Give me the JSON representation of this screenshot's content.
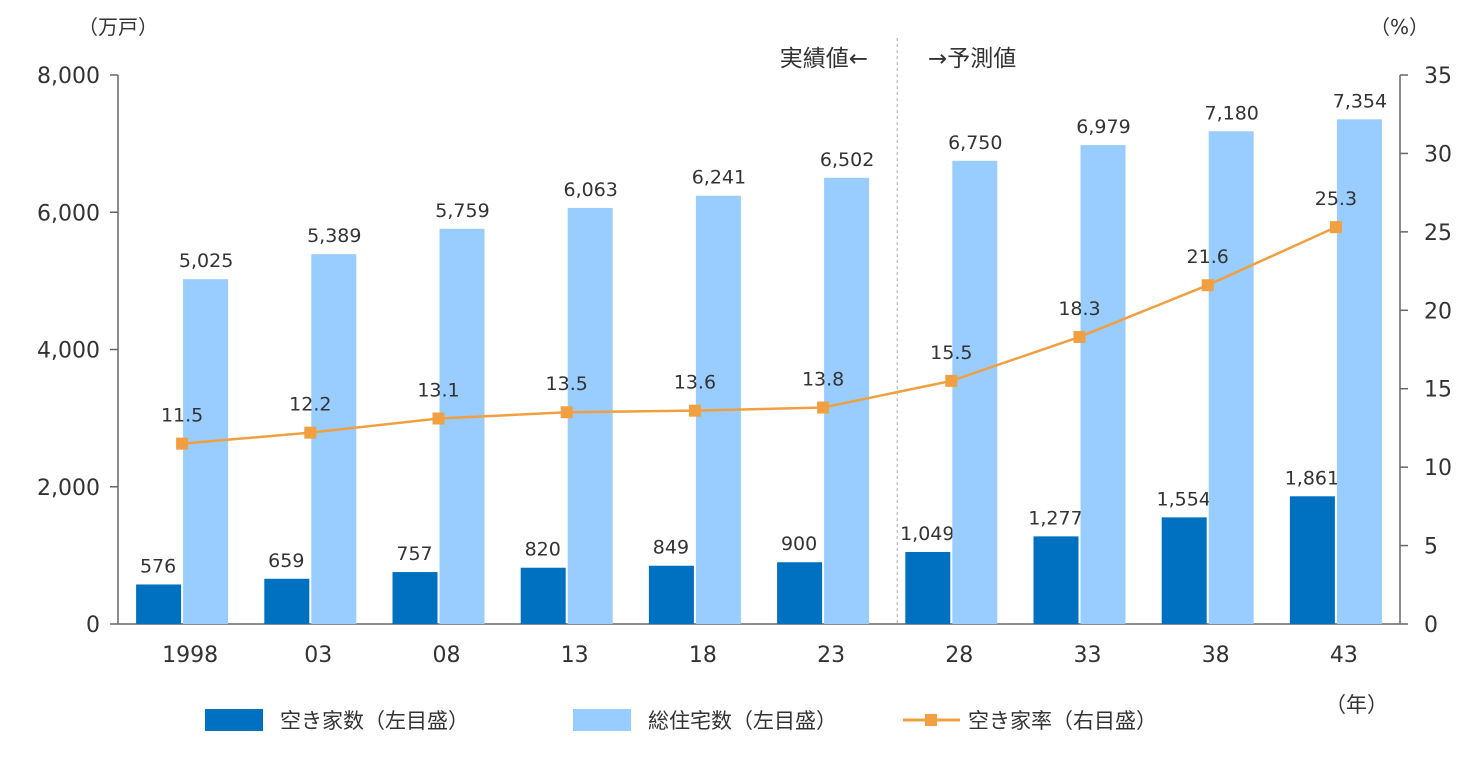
{
  "chart_data": {
    "type": "bar",
    "categories": [
      "1998",
      "03",
      "08",
      "13",
      "18",
      "23",
      "28",
      "33",
      "38",
      "43"
    ],
    "series": [
      {
        "name": "空き家数（左目盛）",
        "kind": "bar",
        "axis": "left",
        "color": "#0070c0",
        "values": [
          576,
          659,
          757,
          820,
          849,
          900,
          1049,
          1277,
          1554,
          1861
        ],
        "labels": [
          "576",
          "659",
          "757",
          "820",
          "849",
          "900",
          "1,049",
          "1,277",
          "1,554",
          "1,861"
        ]
      },
      {
        "name": "総住宅数（左目盛）",
        "kind": "bar",
        "axis": "left",
        "color": "#99ccff",
        "values": [
          5025,
          5389,
          5759,
          6063,
          6241,
          6502,
          6750,
          6979,
          7180,
          7354
        ],
        "labels": [
          "5,025",
          "5,389",
          "5,759",
          "6,063",
          "6,241",
          "6,502",
          "6,750",
          "6,979",
          "7,180",
          "7,354"
        ]
      },
      {
        "name": "空き家率（右目盛）",
        "kind": "line",
        "axis": "right",
        "color": "#f0a040",
        "values": [
          11.5,
          12.2,
          13.1,
          13.5,
          13.6,
          13.8,
          15.5,
          18.3,
          21.6,
          25.3
        ],
        "labels": [
          "11.5",
          "12.2",
          "13.1",
          "13.5",
          "13.6",
          "13.8",
          "15.5",
          "18.3",
          "21.6",
          "25.3"
        ]
      }
    ],
    "left_axis": {
      "unit": "（万戸）",
      "ylim": [
        0,
        8000
      ],
      "ticks": [
        "0",
        "2,000",
        "4,000",
        "6,000",
        "8,000"
      ]
    },
    "right_axis": {
      "unit": "（%）",
      "ylim": [
        0,
        35
      ],
      "ticks": [
        "0",
        "5",
        "10",
        "15",
        "20",
        "25",
        "30",
        "35"
      ]
    },
    "xlabel": "（年）",
    "annotations": {
      "actual": "実績値←",
      "forecast": "→予測値",
      "divider_after_category": "23"
    },
    "legend_position": "bottom",
    "grid": false
  }
}
